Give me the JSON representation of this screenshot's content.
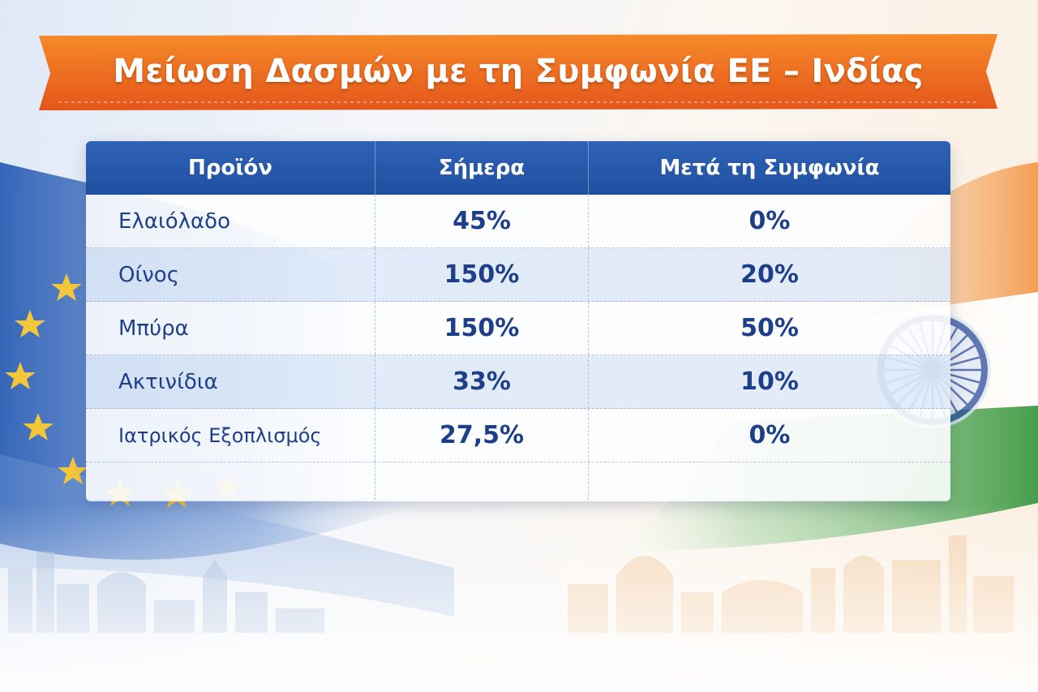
{
  "title": "Μείωση Δασμών με τη Συμφωνία ΕΕ – Ινδίας",
  "colors": {
    "banner": "#f06a1c",
    "header": "#2459ab",
    "text": "#1d3f8a",
    "eu_blue": "#2d5fb5",
    "eu_star": "#f4c63a",
    "india_saffron": "#f5a45a",
    "india_green": "#3d9a44",
    "chakra": "#2a4d9c"
  },
  "decor": {
    "left_flag": "eu-flag-icon",
    "right_flag": "india-flag-icon",
    "wheel": "ashoka-chakra-icon",
    "left_skyline": "european-skyline",
    "right_skyline": "indian-skyline"
  },
  "table": {
    "headers": [
      "Προϊόν",
      "Σήμερα",
      "Μετά τη Συμφωνία"
    ],
    "rows": [
      {
        "product": "Ελαιόλαδο",
        "today": "45%",
        "after": "0%"
      },
      {
        "product": "Οίνος",
        "today": "150%",
        "after": "20%"
      },
      {
        "product": "Μπύρα",
        "today": "150%",
        "after": "50%"
      },
      {
        "product": "Ακτινίδια",
        "today": "33%",
        "after": "10%"
      },
      {
        "product": "Ιατρικός Εξοπλισμός",
        "today": "27,5%",
        "after": "0%"
      }
    ]
  }
}
